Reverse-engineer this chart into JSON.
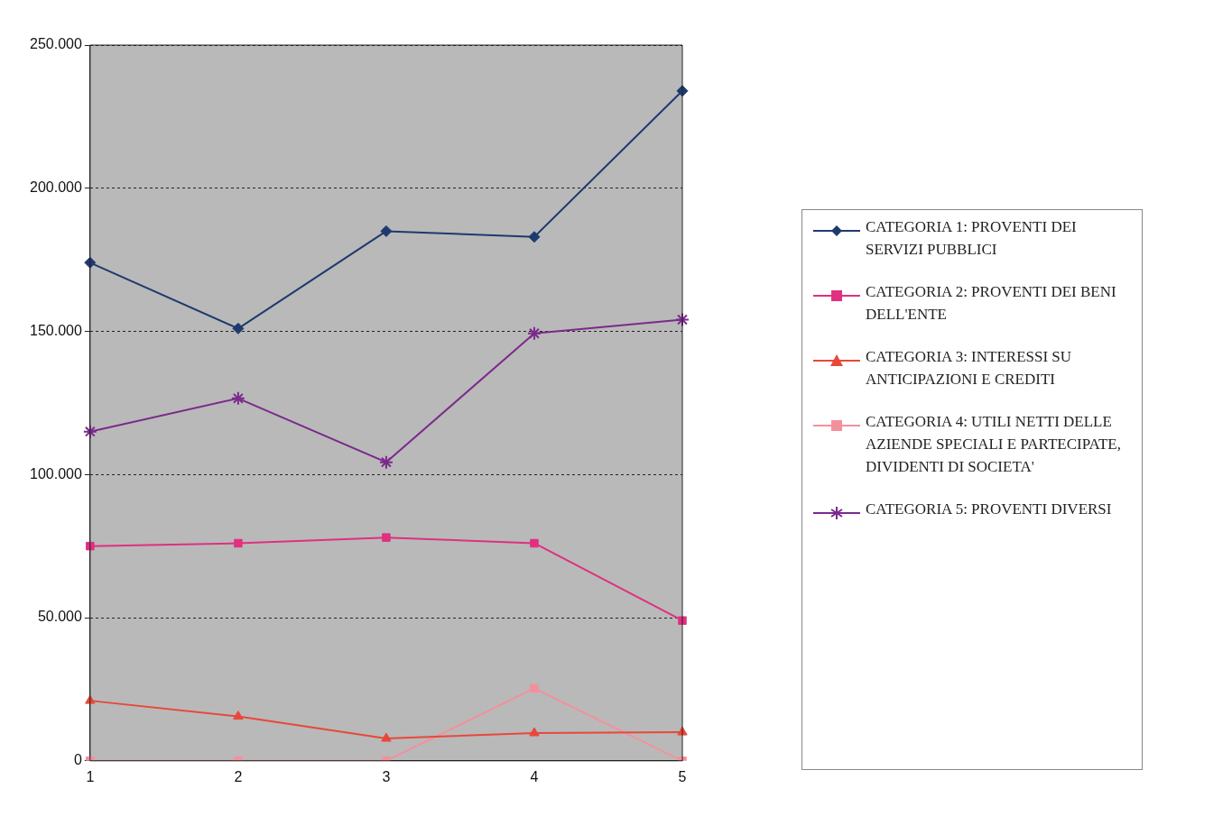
{
  "chart_data": {
    "type": "line",
    "categories": [
      "1",
      "2",
      "3",
      "4",
      "5"
    ],
    "ylim": [
      0,
      250000
    ],
    "yticks": [
      {
        "value": 0,
        "label": "0"
      },
      {
        "value": 50000,
        "label": "50.000"
      },
      {
        "value": 100000,
        "label": "100.000"
      },
      {
        "value": 150000,
        "label": "150.000"
      },
      {
        "value": 200000,
        "label": "200.000"
      },
      {
        "value": 250000,
        "label": "250.000"
      }
    ],
    "grid": "y",
    "legend": "right",
    "line_style": "solid",
    "series": [
      {
        "name": "CATEGORIA 1: PROVENTI DEI SERVIZI PUBBLICI",
        "color": "#1f3a6e",
        "marker": "diamond",
        "values": [
          174000,
          151000,
          185000,
          183000,
          234000
        ]
      },
      {
        "name": "CATEGORIA 2: PROVENTI DEI BENI DELL'ENTE",
        "color": "#e0307f",
        "marker": "square",
        "values": [
          75000,
          76000,
          78000,
          76000,
          49000
        ]
      },
      {
        "name": "CATEGORIA 3: INTERESSI SU ANTICIPAZIONI E CREDITI",
        "color": "#e8483a",
        "marker": "triangle",
        "values": [
          21000,
          15500,
          7800,
          9700,
          10000
        ]
      },
      {
        "name": "CATEGORIA 4: UTILI NETTI DELLE AZIENDE SPECIALI E PARTECIPATE, DIVIDENTI DI SOCIETA'",
        "color": "#f4909c",
        "marker": "square",
        "values": [
          0,
          0,
          0,
          25300,
          0
        ]
      },
      {
        "name": "CATEGORIA 5: PROVENTI DIVERSI",
        "color": "#7b2a8c",
        "marker": "cross",
        "values": [
          115000,
          126600,
          104300,
          149300,
          154100
        ]
      }
    ]
  }
}
